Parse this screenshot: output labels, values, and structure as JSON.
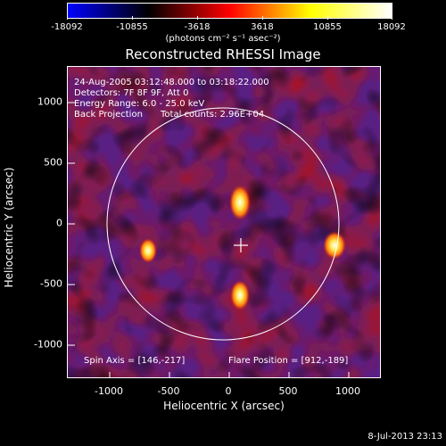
{
  "colorbar": {
    "ticks": [
      "-18092",
      "-10855",
      "-3618",
      "3618",
      "10855",
      "18092"
    ],
    "units": "(photons cm⁻² s⁻¹ asec⁻²)",
    "colors": [
      "#0000ff",
      "#000000",
      "#ff0000",
      "#ffff00",
      "#ffffff"
    ]
  },
  "title": "Reconstructed RHESSI Image",
  "annotations": {
    "time": "24-Aug-2005 03:12:48.000 to 03:18:22.000",
    "detectors": "Detectors: 7F 8F 9F, Att 0",
    "energy": "Energy Range: 6.0 - 25.0 keV",
    "method": "Back Projection",
    "counts": "Total counts: 2.96E+04",
    "spin_axis": "Spin Axis = [146,-217]",
    "flare_position": "Flare Position = [912,-189]"
  },
  "axes": {
    "xlabel": "Heliocentric X (arcsec)",
    "ylabel": "Heliocentric Y (arcsec)",
    "xticks": [
      "-1000",
      "-500",
      "0",
      "500",
      "1000"
    ],
    "yticks": [
      "1000",
      "500",
      "0",
      "-500",
      "-1000"
    ]
  },
  "timestamp": "8-Jul-2013 23:13"
}
